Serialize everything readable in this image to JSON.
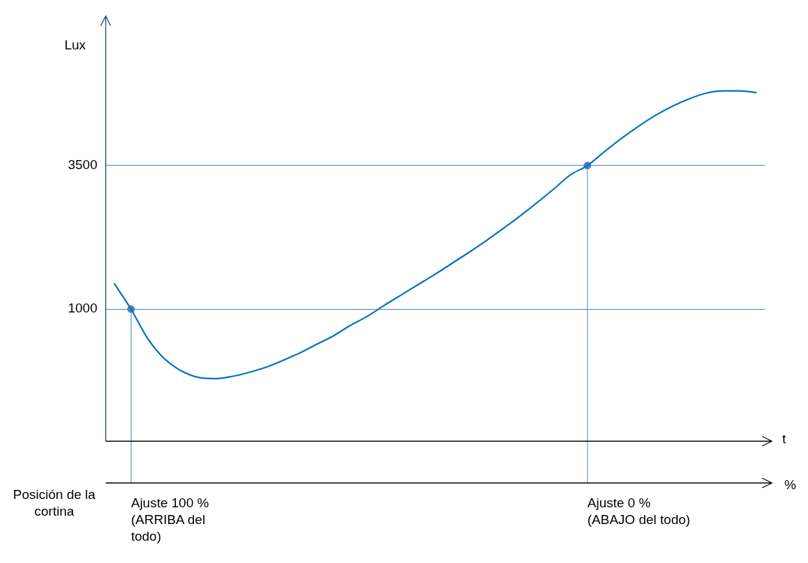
{
  "chart_data": {
    "type": "line",
    "ylabel": "Lux",
    "xlabel": "t",
    "categories": [
      null,
      null,
      null,
      null,
      null,
      null,
      null,
      null,
      null,
      null,
      null,
      null,
      null,
      null,
      null,
      null,
      null,
      null,
      null,
      null,
      null,
      null,
      null,
      null,
      null,
      null,
      null,
      null,
      null,
      null,
      null,
      null,
      null,
      null,
      null,
      null,
      null,
      null,
      null
    ],
    "series": [
      {
        "type": "line",
        "color": "#0070c0",
        "marker": "none",
        "values": [
          1450,
          1000,
          480,
          130,
          -80,
          -190,
          -210,
          -170,
          -100,
          -10,
          110,
          240,
          390,
          540,
          720,
          880,
          1070,
          1250,
          1430,
          1610,
          1800,
          1990,
          2190,
          2400,
          2620,
          2850,
          3090,
          3340,
          3500,
          3740,
          3970,
          4180,
          4370,
          4530,
          4660,
          4760,
          4800,
          4800,
          4770
        ]
      },
      {
        "type": "scatter",
        "color": "#4f81bd",
        "marker": "circle",
        "values": [
          null,
          1000,
          null,
          null,
          null,
          null,
          null,
          null,
          null,
          null,
          null,
          null,
          null,
          null,
          null,
          null,
          null,
          null,
          null,
          null,
          null,
          null,
          null,
          null,
          null,
          null,
          null,
          null,
          3500,
          null,
          null,
          null,
          null,
          null,
          null,
          null,
          null,
          null,
          null
        ]
      }
    ],
    "ylim": [
      -1300,
      6100
    ],
    "yticks": [
      1000,
      3500
    ],
    "grid": "y",
    "tick_labels": "y",
    "legend": false,
    "annotations": [
      "Posición de la cortina",
      "%",
      "Ajuste 100 % (ARRIBA del todo)",
      "Ajuste 0 % (ABAJO del todo)"
    ]
  }
}
